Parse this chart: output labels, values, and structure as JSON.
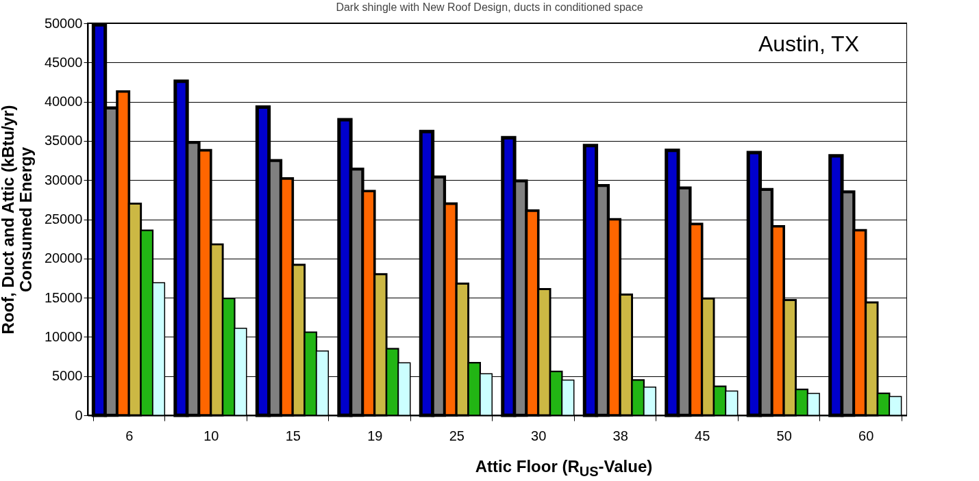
{
  "chart_data": {
    "type": "bar",
    "title": "Dark shingle with New Roof Design, ducts in conditioned space",
    "xlabel": "Attic Floor (R$_{US}$-Value)",
    "ylabel": "Roof, Duct and Attic (kBtu/yr)\nConsumed Energy",
    "annotations": [
      "Austin,  TX"
    ],
    "categories": [
      "6",
      "10",
      "15",
      "19",
      "25",
      "30",
      "38",
      "45",
      "50",
      "60"
    ],
    "series": [
      {
        "color": "#0000cc",
        "values": [
          49800,
          42600,
          39300,
          37700,
          36200,
          35400,
          34400,
          33800,
          33500,
          33100
        ]
      },
      {
        "color": "#808080",
        "values": [
          39200,
          34800,
          32500,
          31400,
          30400,
          29900,
          29300,
          29000,
          28800,
          28500
        ]
      },
      {
        "color": "#ff6600",
        "values": [
          41300,
          33800,
          30200,
          28600,
          27000,
          26100,
          25000,
          24400,
          24100,
          23600
        ]
      },
      {
        "color": "#ccb844",
        "values": [
          27000,
          21800,
          19200,
          18000,
          16800,
          16100,
          15400,
          14900,
          14700,
          14400
        ]
      },
      {
        "color": "#22b514",
        "values": [
          23600,
          14900,
          10600,
          8500,
          6700,
          5600,
          4500,
          3700,
          3300,
          2800
        ]
      },
      {
        "color": "#ccffff",
        "values": [
          16900,
          11100,
          8200,
          6700,
          5300,
          4500,
          3600,
          3100,
          2800,
          2400
        ]
      }
    ],
    "ylim": [
      0,
      50000
    ],
    "yticks": [
      0,
      5000,
      10000,
      15000,
      20000,
      25000,
      30000,
      35000,
      40000,
      45000,
      50000
    ],
    "grid": "y",
    "legend": false
  }
}
